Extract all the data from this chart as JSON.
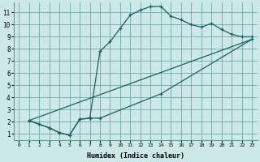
{
  "xlabel": "Humidex (Indice chaleur)",
  "bg_color": "#cde8e8",
  "grid_color": "#5a9e9e",
  "line_color": "#1a6060",
  "xlim": [
    -0.5,
    23.5
  ],
  "ylim": [
    0.5,
    11.8
  ],
  "xticks": [
    0,
    1,
    2,
    3,
    4,
    5,
    6,
    7,
    8,
    9,
    10,
    11,
    12,
    13,
    14,
    15,
    16,
    17,
    18,
    19,
    20,
    21,
    22,
    23
  ],
  "yticks": [
    1,
    2,
    3,
    4,
    5,
    6,
    7,
    8,
    9,
    10,
    11
  ],
  "line1_x": [
    1,
    2,
    3,
    4,
    5,
    6,
    7,
    8,
    9,
    10,
    11,
    12,
    13,
    14,
    15,
    16,
    17,
    18,
    19,
    20,
    21,
    22,
    23
  ],
  "line1_y": [
    2.1,
    1.8,
    1.5,
    1.1,
    0.9,
    2.2,
    2.3,
    7.8,
    8.6,
    9.7,
    10.8,
    11.2,
    11.5,
    11.5,
    10.7,
    10.4,
    10.0,
    9.8,
    10.1,
    9.6,
    9.2,
    9.0,
    9.0
  ],
  "line2_x": [
    1,
    2,
    3,
    4,
    5,
    6,
    7,
    8,
    14,
    23
  ],
  "line2_y": [
    2.1,
    1.8,
    1.5,
    1.1,
    0.9,
    2.2,
    2.3,
    2.3,
    4.3,
    8.8
  ],
  "line3_x": [
    1,
    23
  ],
  "line3_y": [
    2.1,
    8.8
  ]
}
